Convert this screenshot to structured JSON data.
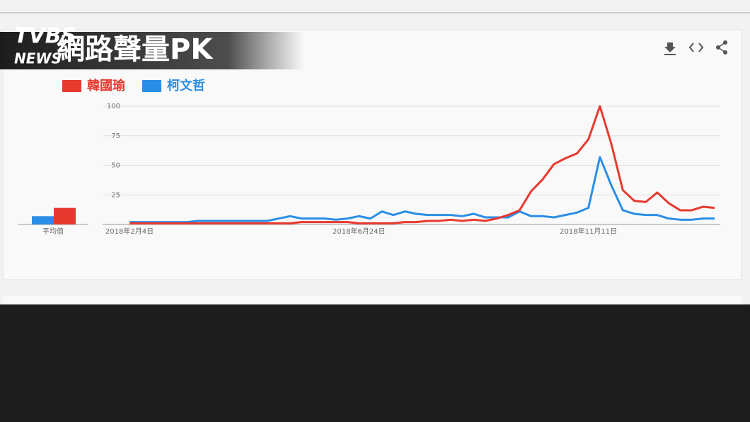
{
  "overlay": {
    "logo": "TVBS",
    "logo_sub": "NEWS",
    "title": "網路聲量PK"
  },
  "chart_data": {
    "type": "line",
    "categories": [
      "2018年2月4日",
      null,
      null,
      null,
      null,
      null,
      null,
      null,
      null,
      null,
      null,
      null,
      null,
      null,
      null,
      null,
      null,
      null,
      null,
      null,
      "2018年6月24日",
      null,
      null,
      null,
      null,
      null,
      null,
      null,
      null,
      null,
      null,
      null,
      null,
      null,
      null,
      null,
      null,
      null,
      null,
      null,
      "2018年11月11日",
      null,
      null,
      null,
      null,
      null,
      null,
      null,
      null,
      null,
      null,
      null
    ],
    "series": [
      {
        "name": "韓國瑜",
        "color": "#e8392f",
        "average": 14,
        "values": [
          1,
          1,
          1,
          1,
          1,
          1,
          1,
          1,
          1,
          1,
          1,
          1,
          1,
          1,
          1,
          2,
          2,
          2,
          2,
          2,
          1,
          1,
          1,
          1,
          2,
          2,
          3,
          3,
          4,
          3,
          4,
          3,
          5,
          8,
          12,
          28,
          38,
          51,
          56,
          60,
          72,
          100,
          68,
          29,
          20,
          19,
          27,
          18,
          12,
          12,
          15,
          14
        ]
      },
      {
        "name": "柯文哲",
        "color": "#2b8ee6",
        "average": 7,
        "values": [
          2,
          2,
          2,
          2,
          2,
          2,
          3,
          3,
          3,
          3,
          3,
          3,
          3,
          5,
          7,
          5,
          5,
          5,
          4,
          5,
          7,
          5,
          11,
          8,
          11,
          9,
          8,
          8,
          8,
          7,
          9,
          6,
          6,
          6,
          11,
          7,
          7,
          6,
          8,
          10,
          14,
          57,
          33,
          12,
          9,
          8,
          8,
          5,
          4,
          4,
          5,
          5
        ]
      }
    ],
    "average_label": "平均值",
    "ylim": [
      0,
      100
    ],
    "yticks": [
      25,
      50,
      75,
      100
    ],
    "grid": true
  }
}
